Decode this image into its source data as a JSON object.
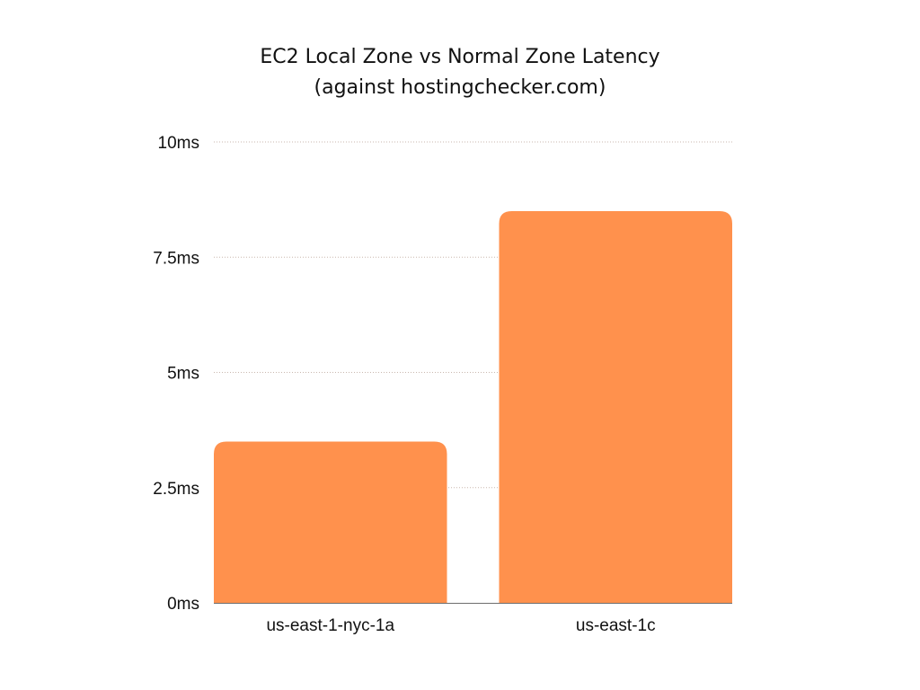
{
  "chart_data": {
    "type": "bar",
    "title": "EC2 Local Zone vs Normal Zone Latency",
    "subtitle": "(against hostingchecker.com)",
    "xlabel": "",
    "ylabel": "",
    "categories": [
      "us-east-1-nyc-1a",
      "us-east-1c"
    ],
    "values": [
      3.5,
      8.5
    ],
    "unit": "ms",
    "ylim": [
      0,
      10
    ],
    "yticks": [
      0,
      2.5,
      5,
      7.5,
      10
    ],
    "ytick_labels": [
      "0ms",
      "2.5ms",
      "5ms",
      "7.5ms",
      "10ms"
    ],
    "grid": true,
    "legend": "none",
    "bar_color": "#FF914D"
  }
}
